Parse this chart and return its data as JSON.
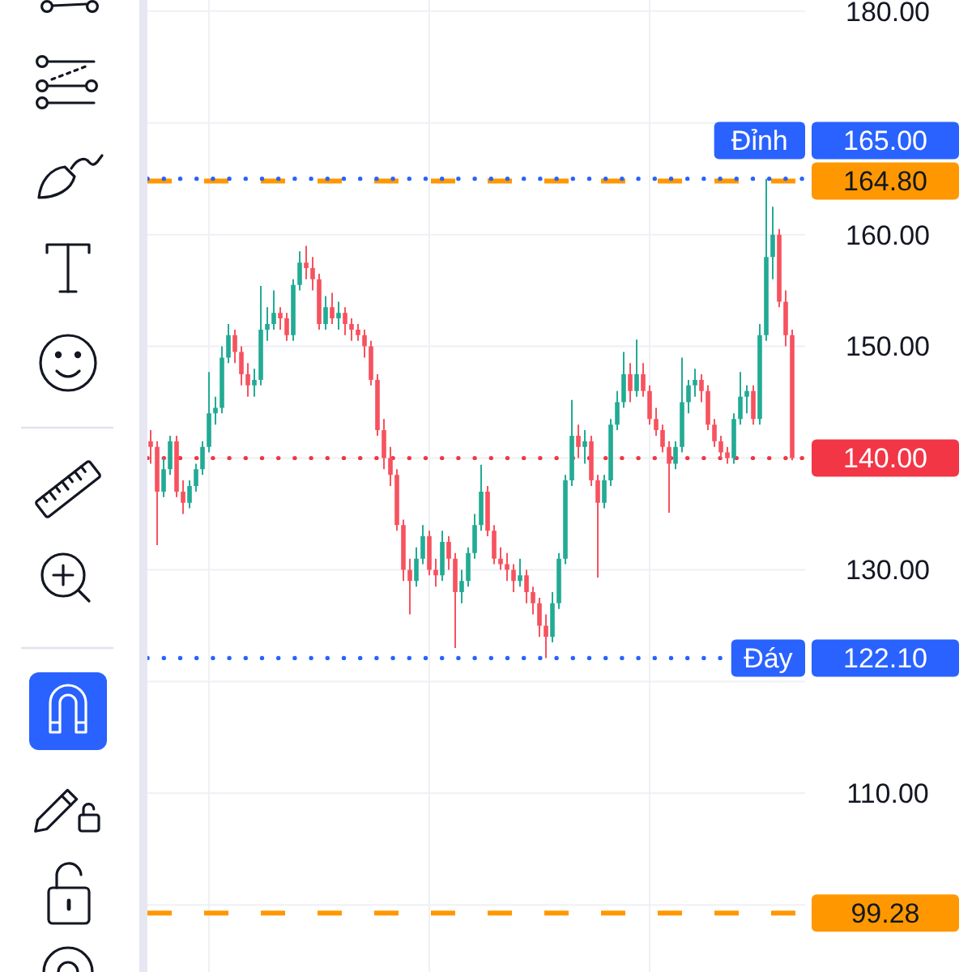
{
  "chart_data": {
    "type": "candlestick",
    "categories": [
      null,
      null,
      null,
      null,
      null,
      null,
      null,
      null,
      null,
      null,
      null,
      null,
      null,
      null,
      null,
      null,
      null,
      null,
      null,
      null,
      null,
      null,
      null,
      null,
      null,
      null,
      null,
      null,
      null,
      null,
      null,
      null,
      null,
      null,
      null,
      null,
      null,
      null,
      null,
      null,
      null,
      null,
      null,
      null,
      null,
      null,
      null,
      null,
      null,
      null,
      null,
      null,
      null,
      null,
      null,
      null,
      null,
      null,
      null,
      null,
      null,
      null,
      null,
      null,
      null,
      null,
      null,
      null,
      null,
      null,
      null,
      null,
      null,
      null,
      null,
      null,
      null,
      null,
      null,
      null,
      null,
      null,
      null,
      null,
      null,
      null,
      null,
      null,
      null,
      null,
      null,
      null,
      null,
      null,
      null,
      null,
      null,
      null,
      null,
      null
    ],
    "ohlc": [
      [
        141.5,
        142.5,
        139.5,
        141
      ],
      [
        141,
        141.5,
        132.2,
        137
      ],
      [
        137,
        140,
        136.5,
        139
      ],
      [
        139,
        142,
        138.5,
        141.5
      ],
      [
        141.5,
        142,
        136.5,
        137
      ],
      [
        137,
        138,
        135,
        136
      ],
      [
        136,
        138,
        135.5,
        137.5
      ],
      [
        137.5,
        139.5,
        137,
        139
      ],
      [
        139,
        141.5,
        138.5,
        141
      ],
      [
        141,
        147.7,
        140.5,
        144
      ],
      [
        144,
        145.5,
        143,
        144.5
      ],
      [
        144.5,
        150,
        144,
        149
      ],
      [
        149,
        152,
        148.5,
        151
      ],
      [
        151,
        151.5,
        148.5,
        149.5
      ],
      [
        149.5,
        150,
        146.5,
        147.5
      ],
      [
        147.5,
        148.5,
        145.5,
        146.5
      ],
      [
        146.5,
        148,
        145.5,
        147
      ],
      [
        147,
        155.4,
        146.5,
        151.5
      ],
      [
        151.5,
        153.5,
        150.5,
        152
      ],
      [
        152,
        155,
        151.5,
        153
      ],
      [
        153,
        153.5,
        151.5,
        152.5
      ],
      [
        152.5,
        153,
        150.5,
        151
      ],
      [
        151,
        156,
        150.5,
        155.5
      ],
      [
        155.5,
        158.5,
        155,
        157.5
      ],
      [
        157.5,
        159,
        156,
        157
      ],
      [
        157,
        158,
        155,
        156
      ],
      [
        156,
        156.5,
        151.5,
        152
      ],
      [
        152,
        154.5,
        151.5,
        153.5
      ],
      [
        153.5,
        154.8,
        152,
        152.5
      ],
      [
        152.5,
        154,
        151.5,
        153
      ],
      [
        153,
        153.5,
        151,
        152
      ],
      [
        152,
        152.5,
        150.5,
        151.5
      ],
      [
        151.5,
        152,
        150.5,
        151
      ],
      [
        151,
        151.5,
        149,
        150
      ],
      [
        150,
        150.5,
        146.5,
        147
      ],
      [
        147,
        147.5,
        142,
        142.5
      ],
      [
        142.5,
        143.5,
        139,
        140
      ],
      [
        140,
        141,
        137.5,
        138.5
      ],
      [
        138.5,
        139,
        133.5,
        134
      ],
      [
        134,
        134.5,
        129,
        130
      ],
      [
        130,
        131,
        126,
        129
      ],
      [
        129,
        132,
        128.5,
        131
      ],
      [
        131,
        134,
        130.5,
        133
      ],
      [
        133,
        133.5,
        129.5,
        130
      ],
      [
        130,
        131,
        128.5,
        129.5
      ],
      [
        129.5,
        133.5,
        129,
        132.5
      ],
      [
        132.5,
        133,
        130,
        131
      ],
      [
        131,
        131.5,
        123,
        128
      ],
      [
        128,
        130,
        127,
        129
      ],
      [
        129,
        132,
        128.5,
        131.5
      ],
      [
        131.5,
        135,
        131,
        134
      ],
      [
        134,
        139.4,
        133.5,
        137
      ],
      [
        137,
        137.5,
        133,
        133.5
      ],
      [
        133.5,
        134,
        130.5,
        131
      ],
      [
        131,
        132,
        130,
        130.5
      ],
      [
        130.5,
        131.5,
        129,
        130
      ],
      [
        130,
        130.5,
        128,
        129
      ],
      [
        129,
        131,
        128.5,
        129.5
      ],
      [
        129.5,
        130,
        127,
        128
      ],
      [
        128,
        128.5,
        126,
        127
      ],
      [
        127,
        127.5,
        124,
        125
      ],
      [
        125,
        126,
        122.1,
        124
      ],
      [
        124,
        128,
        123.5,
        127
      ],
      [
        127,
        131.5,
        126.5,
        131
      ],
      [
        131,
        138.5,
        130.5,
        138
      ],
      [
        138,
        145.2,
        137.5,
        142
      ],
      [
        142,
        143,
        140,
        141
      ],
      [
        141,
        142.5,
        139.5,
        141.5
      ],
      [
        141.5,
        142,
        137.5,
        138
      ],
      [
        138,
        138.5,
        129.3,
        136
      ],
      [
        136,
        138.5,
        135.5,
        138
      ],
      [
        138,
        143.5,
        137.5,
        143
      ],
      [
        143,
        146,
        142.5,
        145
      ],
      [
        145,
        149.5,
        144.5,
        147.5
      ],
      [
        147.5,
        148.5,
        145,
        146
      ],
      [
        146,
        150.6,
        145.5,
        147.5
      ],
      [
        147.5,
        148.5,
        145.5,
        146
      ],
      [
        146,
        146.5,
        143,
        143.5
      ],
      [
        143.5,
        144.5,
        142,
        142.5
      ],
      [
        142.5,
        143,
        140.5,
        141
      ],
      [
        141,
        141.5,
        135.1,
        139.5
      ],
      [
        139.5,
        141.5,
        139,
        141
      ],
      [
        141,
        149,
        140.5,
        145
      ],
      [
        145,
        147,
        144,
        146.5
      ],
      [
        146.5,
        148,
        145.5,
        147
      ],
      [
        147,
        147.5,
        145,
        146
      ],
      [
        146,
        146.5,
        142.5,
        143
      ],
      [
        143,
        143.5,
        141,
        141.5
      ],
      [
        141.5,
        142,
        140,
        140.5
      ],
      [
        140.5,
        141,
        139.5,
        140
      ],
      [
        140,
        144,
        139.5,
        143.5
      ],
      [
        143.5,
        147.7,
        143,
        145.5
      ],
      [
        145.5,
        146.5,
        144,
        146
      ],
      [
        146,
        146.5,
        143,
        143.5
      ],
      [
        143.5,
        152,
        143,
        151
      ],
      [
        151,
        165,
        150.5,
        158
      ],
      [
        158,
        162.5,
        156,
        160
      ],
      [
        160,
        160.5,
        153.5,
        154
      ],
      [
        154,
        155,
        150,
        151
      ],
      [
        151,
        151.5,
        139.8,
        140
      ]
    ],
    "colors": [
      "#f7525f",
      "#f7525f",
      "#22ab94",
      "#22ab94",
      "#f7525f",
      "#f7525f",
      "#22ab94",
      "#22ab94",
      "#22ab94",
      "#22ab94",
      "#22ab94",
      "#22ab94",
      "#22ab94",
      "#f7525f",
      "#f7525f",
      "#f7525f",
      "#22ab94",
      "#22ab94",
      "#22ab94",
      "#22ab94",
      "#f7525f",
      "#f7525f",
      "#22ab94",
      "#22ab94",
      "#f7525f",
      "#f7525f",
      "#f7525f",
      "#22ab94",
      "#f7525f",
      "#22ab94",
      "#f7525f",
      "#f7525f",
      "#f7525f",
      "#f7525f",
      "#f7525f",
      "#f7525f",
      "#f7525f",
      "#f7525f",
      "#f7525f",
      "#f7525f",
      "#f7525f",
      "#22ab94",
      "#22ab94",
      "#f7525f",
      "#f7525f",
      "#22ab94",
      "#f7525f",
      "#f7525f",
      "#22ab94",
      "#22ab94",
      "#22ab94",
      "#22ab94",
      "#f7525f",
      "#f7525f",
      "#f7525f",
      "#f7525f",
      "#f7525f",
      "#22ab94",
      "#f7525f",
      "#f7525f",
      "#f7525f",
      "#f7525f",
      "#22ab94",
      "#22ab94",
      "#22ab94",
      "#22ab94",
      "#f7525f",
      "#22ab94",
      "#f7525f",
      "#f7525f",
      "#22ab94",
      "#22ab94",
      "#22ab94",
      "#22ab94",
      "#f7525f",
      "#22ab94",
      "#f7525f",
      "#f7525f",
      "#f7525f",
      "#f7525f",
      "#f7525f",
      "#22ab94",
      "#22ab94",
      "#22ab94",
      "#22ab94",
      "#f7525f",
      "#f7525f",
      "#f7525f",
      "#f7525f",
      "#f7525f",
      "#22ab94",
      "#22ab94",
      "#22ab94",
      "#f7525f",
      "#22ab94",
      "#22ab94",
      "#22ab94",
      "#f7525f",
      "#f7525f",
      "#f7525f"
    ],
    "ylim": [
      94,
      181
    ],
    "yticks": [
      {
        "value": 180,
        "label": "180.00"
      },
      {
        "value": 170,
        "label": null
      },
      {
        "value": 160,
        "label": "160.00"
      },
      {
        "value": 150,
        "label": "150.00"
      },
      {
        "value": 140,
        "label": null
      },
      {
        "value": 130,
        "label": "130.00"
      },
      {
        "value": 120,
        "label": null
      },
      {
        "value": 110,
        "label": "110.00"
      },
      {
        "value": 100,
        "label": null
      }
    ],
    "tick_labels": "y",
    "grid": true,
    "ref_lines": [
      {
        "axis": "y",
        "value": 164.8,
        "label": null,
        "color": "#ff9800",
        "line_style": "dashed"
      },
      {
        "axis": "y",
        "value": 165,
        "label": "Đỉnh",
        "color": "#2962ff",
        "line_style": "dotted"
      },
      {
        "axis": "y",
        "value": 140,
        "label": null,
        "color": "#f23645",
        "line_style": "dotted"
      },
      {
        "axis": "y",
        "value": 122.1,
        "label": "Đáy",
        "color": "#2962ff",
        "line_style": "dotted"
      },
      {
        "axis": "y",
        "value": 99.28,
        "label": null,
        "color": "#ff9800",
        "line_style": "dashed"
      }
    ],
    "annotations": [
      "164.80",
      "165.00",
      "140.00",
      "122.10",
      "99.28"
    ]
  }
}
